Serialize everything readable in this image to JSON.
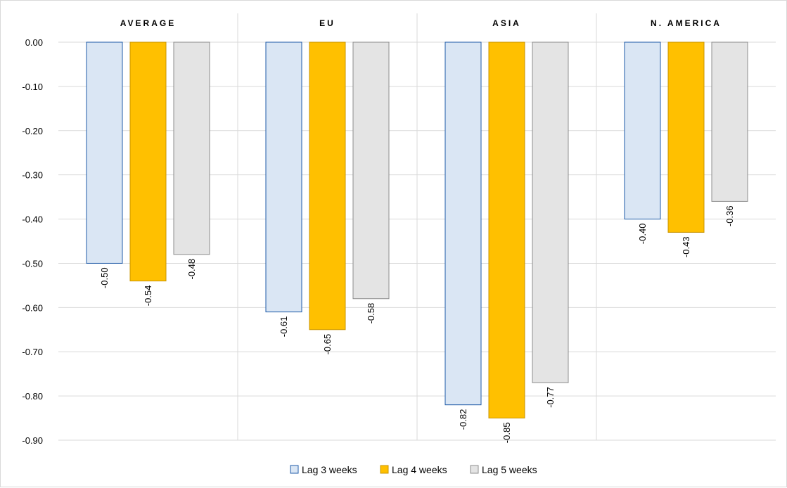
{
  "chart_data": {
    "type": "bar",
    "categories": [
      "AVERAGE",
      "EU",
      "ASIA",
      "N. AMERICA"
    ],
    "series": [
      {
        "name": "Lag 3 weeks",
        "values": [
          -0.5,
          -0.61,
          -0.82,
          -0.4
        ],
        "labels": [
          "-0.50",
          "-0.61",
          "-0.82",
          "-0.40"
        ],
        "fill": "#dae6f4",
        "stroke": "#1f5ba8"
      },
      {
        "name": "Lag 4 weeks",
        "values": [
          -0.54,
          -0.65,
          -0.85,
          -0.43
        ],
        "labels": [
          "-0.54",
          "-0.65",
          "-0.85",
          "-0.43"
        ],
        "fill": "#ffc000",
        "stroke": "#c99400"
      },
      {
        "name": "Lag 5 weeks",
        "values": [
          -0.48,
          -0.58,
          -0.77,
          -0.36
        ],
        "labels": [
          "-0.48",
          "-0.58",
          "-0.77",
          "-0.36"
        ],
        "fill": "#e4e4e4",
        "stroke": "#8c8c8c"
      }
    ],
    "yticks": [
      "0.00",
      "-0.10",
      "-0.20",
      "-0.30",
      "-0.40",
      "-0.50",
      "-0.60",
      "-0.70",
      "-0.80",
      "-0.90"
    ],
    "ylim": [
      -0.9,
      0.0
    ],
    "category_labels_position": "top",
    "grid": true,
    "grid_color": "#d9d9d9",
    "legend_position": "bottom"
  }
}
